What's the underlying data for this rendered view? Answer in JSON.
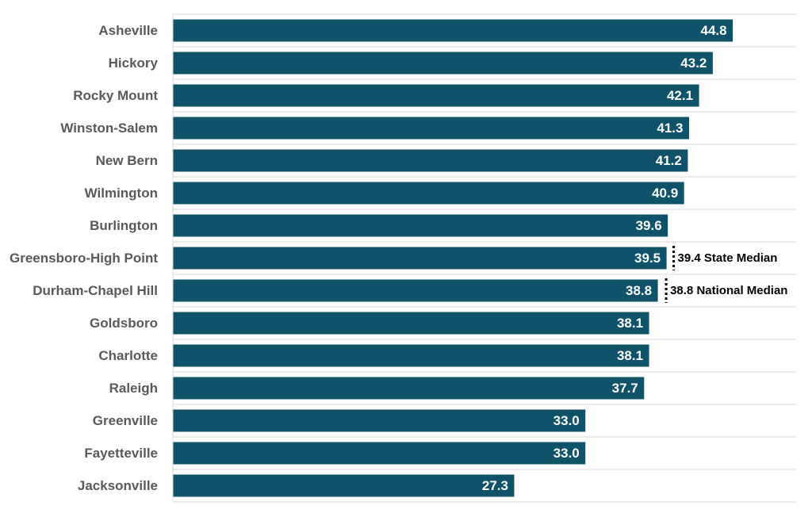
{
  "chart_data": {
    "type": "bar",
    "orientation": "horizontal",
    "categories": [
      "Asheville",
      "Hickory",
      "Rocky Mount",
      "Winston-Salem",
      "New Bern",
      "Wilmington",
      "Burlington",
      "Greensboro-High Point",
      "Durham-Chapel Hill",
      "Goldsboro",
      "Charlotte",
      "Raleigh",
      "Greenville",
      "Fayetteville",
      "Jacksonville"
    ],
    "values": [
      44.8,
      43.2,
      42.1,
      41.3,
      41.2,
      40.9,
      39.6,
      39.5,
      38.8,
      38.1,
      38.1,
      37.7,
      33.0,
      33.0,
      27.3
    ],
    "value_labels": [
      "44.8",
      "43.2",
      "42.1",
      "41.3",
      "41.2",
      "40.9",
      "39.6",
      "39.5",
      "38.8",
      "38.1",
      "38.1",
      "37.7",
      "33.0",
      "33.0",
      "27.3"
    ],
    "xlim": [
      0,
      50
    ],
    "grid": true,
    "bar_color": "#0f5269",
    "reference_lines": [
      {
        "value": 39.4,
        "label": "39.4 State Median",
        "style": "dotted",
        "row_index": 7
      },
      {
        "value": 38.8,
        "label": "38.8 National Median",
        "style": "dotted",
        "row_index": 8
      }
    ],
    "title": "",
    "xlabel": "",
    "ylabel": ""
  }
}
